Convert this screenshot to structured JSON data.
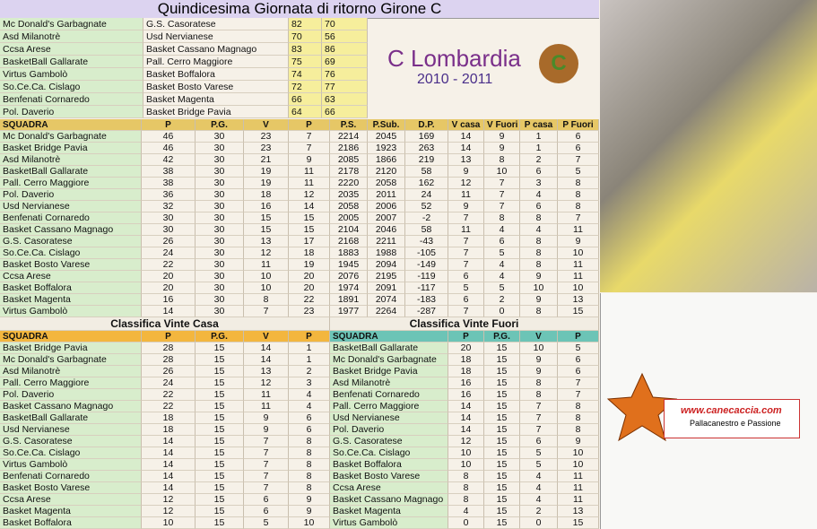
{
  "title": "Quindicesima Giornata di ritorno Girone C",
  "results": {
    "rows": [
      [
        "Mc Donald's Garbagnate",
        "G.S. Casoratese",
        82,
        70
      ],
      [
        "Asd Milanotrè",
        "Usd Nervianese",
        70,
        56
      ],
      [
        "Ccsa Arese",
        "Basket Cassano Magnago",
        83,
        86
      ],
      [
        "BasketBall Gallarate",
        "Pall. Cerro Maggiore",
        75,
        69
      ],
      [
        "Virtus Gambolò",
        "Basket Boffalora",
        74,
        76
      ],
      [
        "So.Ce.Ca. Cislago",
        "Basket Bosto Varese",
        72,
        77
      ],
      [
        "Benfenati Cornaredo",
        "Basket Magenta",
        66,
        63
      ],
      [
        "Pol. Daverio",
        "Basket Bridge Pavia",
        64,
        66
      ]
    ]
  },
  "standings": {
    "header": [
      "SQUADRA",
      "P",
      "P.G.",
      "V",
      "P",
      "P.S.",
      "P.Sub.",
      "D.P.",
      "V casa",
      "V Fuori",
      "P casa",
      "P Fuori"
    ],
    "rows": [
      [
        "Mc Donald's Garbagnate",
        46,
        30,
        23,
        7,
        2214,
        2045,
        169,
        14,
        9,
        1,
        6
      ],
      [
        "Basket Bridge Pavia",
        46,
        30,
        23,
        7,
        2186,
        1923,
        263,
        14,
        9,
        1,
        6
      ],
      [
        "Asd Milanotrè",
        42,
        30,
        21,
        9,
        2085,
        1866,
        219,
        13,
        8,
        2,
        7
      ],
      [
        "BasketBall Gallarate",
        38,
        30,
        19,
        11,
        2178,
        2120,
        58,
        9,
        10,
        6,
        5
      ],
      [
        "Pall. Cerro Maggiore",
        38,
        30,
        19,
        11,
        2220,
        2058,
        162,
        12,
        7,
        3,
        8
      ],
      [
        "Pol. Daverio",
        36,
        30,
        18,
        12,
        2035,
        2011,
        24,
        11,
        7,
        4,
        8
      ],
      [
        "Usd Nervianese",
        32,
        30,
        16,
        14,
        2058,
        2006,
        52,
        9,
        7,
        6,
        8
      ],
      [
        "Benfenati Cornaredo",
        30,
        30,
        15,
        15,
        2005,
        2007,
        -2,
        7,
        8,
        8,
        7
      ],
      [
        "Basket Cassano Magnago",
        30,
        30,
        15,
        15,
        2104,
        2046,
        58,
        11,
        4,
        4,
        11
      ],
      [
        "G.S. Casoratese",
        26,
        30,
        13,
        17,
        2168,
        2211,
        -43,
        7,
        6,
        8,
        9
      ],
      [
        "So.Ce.Ca. Cislago",
        24,
        30,
        12,
        18,
        1883,
        1988,
        -105,
        7,
        5,
        8,
        10
      ],
      [
        "Basket Bosto Varese",
        22,
        30,
        11,
        19,
        1945,
        2094,
        -149,
        7,
        4,
        8,
        11
      ],
      [
        "Ccsa Arese",
        20,
        30,
        10,
        20,
        2076,
        2195,
        -119,
        6,
        4,
        9,
        11
      ],
      [
        "Basket Boffalora",
        20,
        30,
        10,
        20,
        1974,
        2091,
        -117,
        5,
        5,
        10,
        10
      ],
      [
        "Basket Magenta",
        16,
        30,
        8,
        22,
        1891,
        2074,
        -183,
        6,
        2,
        9,
        13
      ],
      [
        "Virtus Gambolò",
        14,
        30,
        7,
        23,
        1977,
        2264,
        -287,
        7,
        0,
        8,
        15
      ]
    ]
  },
  "home_table": {
    "title": "Classifica Vinte Casa",
    "header": [
      "SQUADRA",
      "P",
      "P.G.",
      "V",
      "P"
    ],
    "rows": [
      [
        "Basket Bridge Pavia",
        28,
        15,
        14,
        1
      ],
      [
        "Mc Donald's Garbagnate",
        28,
        15,
        14,
        1
      ],
      [
        "Asd Milanotrè",
        26,
        15,
        13,
        2
      ],
      [
        "Pall. Cerro Maggiore",
        24,
        15,
        12,
        3
      ],
      [
        "Pol. Daverio",
        22,
        15,
        11,
        4
      ],
      [
        "Basket Cassano Magnago",
        22,
        15,
        11,
        4
      ],
      [
        "BasketBall Gallarate",
        18,
        15,
        9,
        6
      ],
      [
        "Usd Nervianese",
        18,
        15,
        9,
        6
      ],
      [
        "G.S. Casoratese",
        14,
        15,
        7,
        8
      ],
      [
        "So.Ce.Ca. Cislago",
        14,
        15,
        7,
        8
      ],
      [
        "Virtus Gambolò",
        14,
        15,
        7,
        8
      ],
      [
        "Benfenati Cornaredo",
        14,
        15,
        7,
        8
      ],
      [
        "Basket Bosto Varese",
        14,
        15,
        7,
        8
      ],
      [
        "Ccsa Arese",
        12,
        15,
        6,
        9
      ],
      [
        "Basket Magenta",
        12,
        15,
        6,
        9
      ],
      [
        "Basket Boffalora",
        10,
        15,
        5,
        10
      ]
    ]
  },
  "away_table": {
    "title": "Classifica  Vinte Fuori",
    "header": [
      "SQUADRA",
      "P",
      "P.G.",
      "V",
      "P"
    ],
    "rows": [
      [
        "BasketBall Gallarate",
        20,
        15,
        10,
        5
      ],
      [
        "Mc Donald's Garbagnate",
        18,
        15,
        9,
        6
      ],
      [
        "Basket Bridge Pavia",
        18,
        15,
        9,
        6
      ],
      [
        "Asd Milanotrè",
        16,
        15,
        8,
        7
      ],
      [
        "Benfenati Cornaredo",
        16,
        15,
        8,
        7
      ],
      [
        "Pall. Cerro Maggiore",
        14,
        15,
        7,
        8
      ],
      [
        "Usd Nervianese",
        14,
        15,
        7,
        8
      ],
      [
        "Pol. Daverio",
        14,
        15,
        7,
        8
      ],
      [
        "G.S. Casoratese",
        12,
        15,
        6,
        9
      ],
      [
        "So.Ce.Ca. Cislago",
        10,
        15,
        5,
        10
      ],
      [
        "Basket Boffalora",
        10,
        15,
        5,
        10
      ],
      [
        "Basket Bosto Varese",
        8,
        15,
        4,
        11
      ],
      [
        "Ccsa Arese",
        8,
        15,
        4,
        11
      ],
      [
        "Basket Cassano Magnago",
        8,
        15,
        4,
        11
      ],
      [
        "Basket Magenta",
        4,
        15,
        2,
        13
      ],
      [
        "Virtus Gambolò",
        0,
        15,
        0,
        15
      ]
    ]
  },
  "brand": {
    "league": "C Lombardia",
    "season": "2010 - 2011"
  },
  "ad": {
    "site": "www.canecaccia.com",
    "tagline": "Pallacanestro e Passione"
  }
}
